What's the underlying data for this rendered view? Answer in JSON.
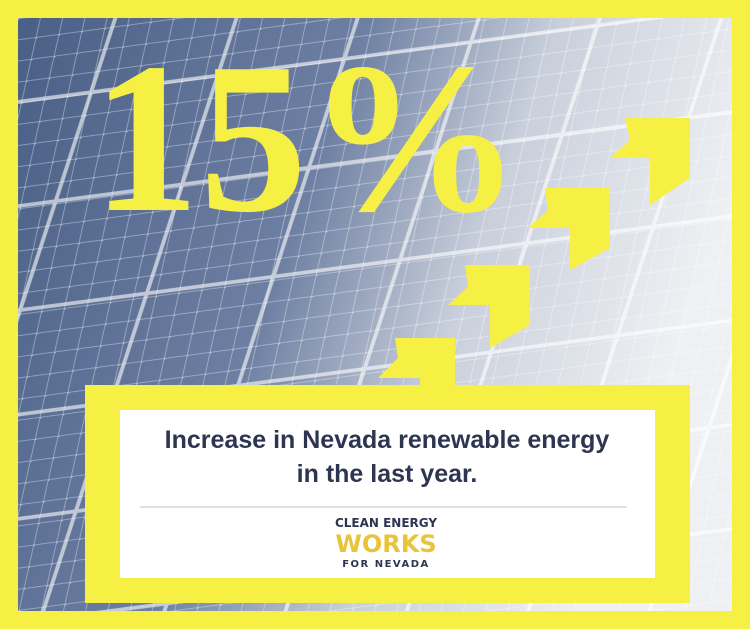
{
  "headline": {
    "figure": "15%"
  },
  "caption": {
    "lines": [
      "Increase in Nevada renewable energy",
      "in the last year."
    ]
  },
  "logo": {
    "lines": [
      "CLEAN ENERGY",
      "WORKS",
      "FOR NEVADA"
    ]
  }
}
